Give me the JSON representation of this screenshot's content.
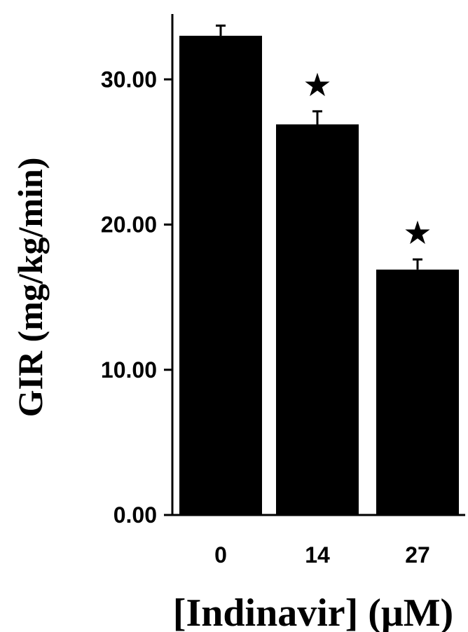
{
  "chart_data": {
    "type": "bar",
    "title": "",
    "xlabel": "[Indinavir] (μM)",
    "ylabel": "GIR (mg/kg/min)",
    "categories": [
      "0",
      "14",
      "27"
    ],
    "values": [
      33.0,
      26.9,
      16.9
    ],
    "errors": [
      0.7,
      0.9,
      0.7
    ],
    "significance": [
      "",
      "★",
      "★"
    ],
    "ylim": [
      0,
      34.5
    ],
    "yticks": [
      0,
      10,
      20,
      30
    ],
    "ytick_labels": [
      "0.00",
      "10.00",
      "20.00",
      "30.00"
    ],
    "grid": false,
    "bar_color": "#000000"
  }
}
